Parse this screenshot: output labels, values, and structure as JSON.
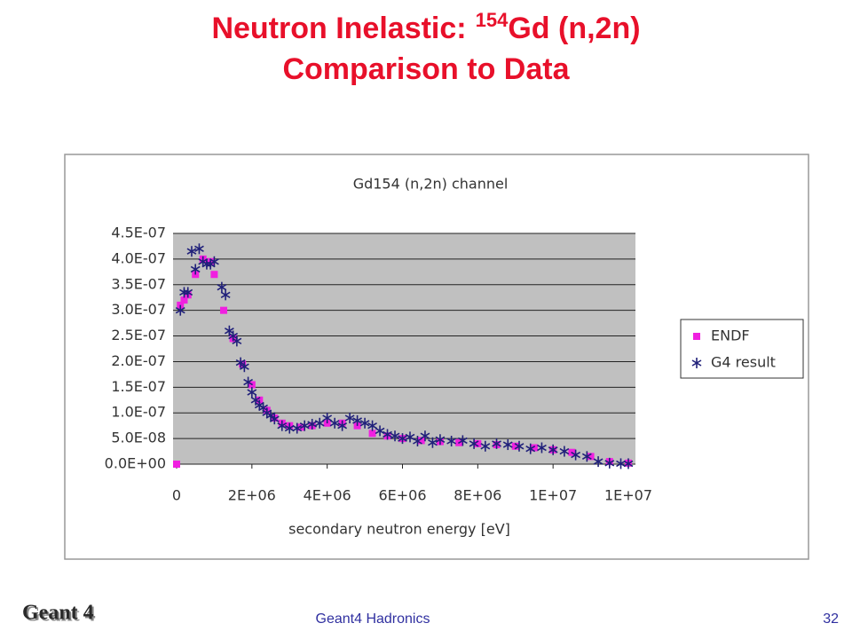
{
  "slide": {
    "title_parts": [
      "Neutron Inelastic:",
      "154",
      "Gd (n,2n)"
    ],
    "title_line2": "Comparison to Data"
  },
  "footer": {
    "logo": "Geant 4",
    "center": "Geant4 Hadronics",
    "page": "32"
  },
  "chart_data": {
    "type": "scatter",
    "title": "Gd154 (n,2n) channel",
    "x_label": "secondary neutron energy [eV]",
    "xlim": [
      0,
      12000000
    ],
    "xticks": [
      0,
      {
        "value": 2000000,
        "label": "2E+06"
      },
      {
        "value": 4000000,
        "label": "4E+06"
      },
      {
        "value": 6000000,
        "label": "6E+06"
      },
      {
        "value": 8000000,
        "label": "8E+06"
      },
      {
        "value": 10000000,
        "label": "1E+07"
      },
      {
        "value": 12000000,
        "label": "1E+07"
      }
    ],
    "ylim": [
      0,
      4.5e-07
    ],
    "yticks": [
      {
        "value": 0,
        "label": "0.0E+00"
      },
      {
        "value": 5e-08,
        "label": "5.0E-08"
      },
      {
        "value": 1e-07,
        "label": "1.0E-07"
      },
      {
        "value": 1.5e-07,
        "label": "1.5E-07"
      },
      {
        "value": 2e-07,
        "label": "2.0E-07"
      },
      {
        "value": 2.5e-07,
        "label": "2.5E-07"
      },
      {
        "value": 3e-07,
        "label": "3.0E-07"
      },
      {
        "value": 3.5e-07,
        "label": "3.5E-07"
      },
      {
        "value": 4e-07,
        "label": "4.0E-07"
      },
      {
        "value": 4.5e-07,
        "label": "4.5E-07"
      }
    ],
    "grid": true,
    "legend": "right",
    "series": [
      {
        "name": "ENDF",
        "color": "#f020e0",
        "marker": "square",
        "x": [
          0,
          100000,
          200000,
          300000,
          500000,
          700000,
          900000,
          1000000,
          1250000,
          1500000,
          1750000,
          2000000,
          2200000,
          2400000,
          2600000,
          2800000,
          3000000,
          3300000,
          3600000,
          4000000,
          4400000,
          4800000,
          5200000,
          5600000,
          6000000,
          6500000,
          7000000,
          7500000,
          8000000,
          8500000,
          9000000,
          9500000,
          10000000,
          10500000,
          11000000,
          11500000,
          12000000
        ],
        "values": [
          0,
          3.1e-07,
          3.2e-07,
          3.3e-07,
          3.7e-07,
          4e-07,
          3.95e-07,
          3.7e-07,
          3e-07,
          2.45e-07,
          1.95e-07,
          1.55e-07,
          1.25e-07,
          1.05e-07,
          9e-08,
          8e-08,
          7.5e-08,
          7.2e-08,
          7.5e-08,
          8e-08,
          8e-08,
          7.5e-08,
          6e-08,
          5.5e-08,
          5e-08,
          4.6e-08,
          4.4e-08,
          4.2e-08,
          4e-08,
          3.8e-08,
          3.5e-08,
          3.2e-08,
          2.8e-08,
          2.3e-08,
          1.5e-08,
          5e-09,
          2e-09
        ]
      },
      {
        "name": "G4 result",
        "color": "#20207a",
        "marker": "asterisk",
        "x": [
          100000,
          200000,
          300000,
          400000,
          500000,
          600000,
          700000,
          800000,
          900000,
          1000000,
          1200000,
          1300000,
          1400000,
          1500000,
          1600000,
          1700000,
          1800000,
          1900000,
          2000000,
          2100000,
          2200000,
          2300000,
          2400000,
          2500000,
          2600000,
          2800000,
          3000000,
          3200000,
          3400000,
          3600000,
          3800000,
          4000000,
          4200000,
          4400000,
          4600000,
          4800000,
          5000000,
          5200000,
          5400000,
          5600000,
          5800000,
          6000000,
          6200000,
          6400000,
          6600000,
          6800000,
          7000000,
          7300000,
          7600000,
          7900000,
          8200000,
          8500000,
          8800000,
          9100000,
          9400000,
          9700000,
          10000000,
          10300000,
          10600000,
          10900000,
          11200000,
          11500000,
          11800000,
          12000000
        ],
        "values": [
          3e-07,
          3.35e-07,
          3.35e-07,
          4.15e-07,
          3.8e-07,
          4.2e-07,
          3.95e-07,
          3.9e-07,
          3.9e-07,
          3.95e-07,
          3.45e-07,
          3.3e-07,
          2.6e-07,
          2.5e-07,
          2.4e-07,
          1.98e-07,
          1.9e-07,
          1.6e-07,
          1.4e-07,
          1.25e-07,
          1.15e-07,
          1.1e-07,
          1e-07,
          9.5e-08,
          8.8e-08,
          7.5e-08,
          7e-08,
          7e-08,
          7.5e-08,
          7.8e-08,
          8e-08,
          9e-08,
          8e-08,
          7.5e-08,
          9e-08,
          8.5e-08,
          8e-08,
          7.5e-08,
          6.5e-08,
          5.8e-08,
          5.5e-08,
          5e-08,
          5.3e-08,
          4.5e-08,
          5.5e-08,
          4.2e-08,
          4.8e-08,
          4.5e-08,
          4.6e-08,
          4e-08,
          3.5e-08,
          4e-08,
          3.8e-08,
          3.5e-08,
          3e-08,
          3.2e-08,
          2.8e-08,
          2.5e-08,
          1.8e-08,
          1.5e-08,
          5e-09,
          2e-09,
          1e-09,
          1e-09
        ]
      }
    ]
  }
}
